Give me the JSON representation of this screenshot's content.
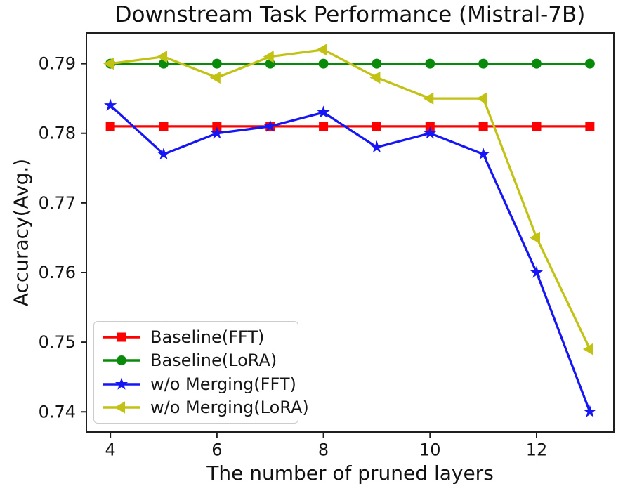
{
  "chart_data": {
    "type": "line",
    "title": "Downstream Task Performance (Mistral-7B)",
    "xlabel": "The number of pruned layers",
    "ylabel": "Accuracy(Avg.)",
    "x": [
      4,
      5,
      6,
      7,
      8,
      9,
      10,
      11,
      12,
      13
    ],
    "x_ticks": [
      4,
      6,
      8,
      10,
      12
    ],
    "y_ticks": [
      0.74,
      0.75,
      0.76,
      0.77,
      0.78,
      0.79
    ],
    "xlim": [
      3.55,
      13.45
    ],
    "ylim": [
      0.7371,
      0.7944
    ],
    "grid": false,
    "legend_position": "lower left",
    "series": [
      {
        "name": "Baseline(FFT)",
        "color": "#ff0000",
        "marker": "square",
        "values": [
          0.781,
          0.781,
          0.781,
          0.781,
          0.781,
          0.781,
          0.781,
          0.781,
          0.781,
          0.781
        ]
      },
      {
        "name": "Baseline(LoRA)",
        "color": "#0a8a0a",
        "marker": "circle",
        "values": [
          0.79,
          0.79,
          0.79,
          0.79,
          0.79,
          0.79,
          0.79,
          0.79,
          0.79,
          0.79
        ]
      },
      {
        "name": "w/o Merging(FFT)",
        "color": "#1616f5",
        "marker": "star",
        "values": [
          0.784,
          0.777,
          0.78,
          0.781,
          0.783,
          0.778,
          0.78,
          0.777,
          0.76,
          0.74
        ]
      },
      {
        "name": "w/o Merging(LoRA)",
        "color": "#c2c215",
        "marker": "triangle-left",
        "values": [
          0.79,
          0.791,
          0.788,
          0.791,
          0.792,
          0.788,
          0.785,
          0.785,
          0.765,
          0.749
        ]
      }
    ]
  }
}
